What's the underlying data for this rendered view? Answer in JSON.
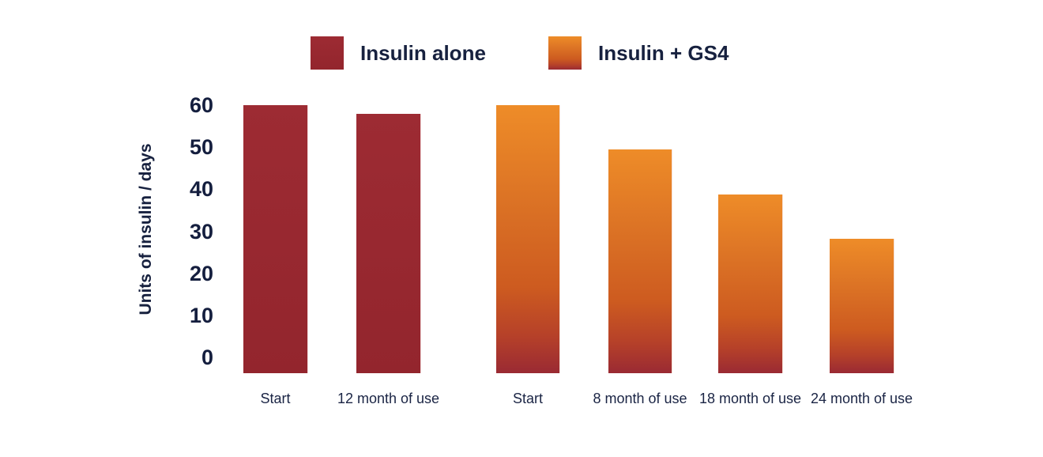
{
  "legend": {
    "items": [
      {
        "label": "Insulin alone",
        "swatch_color": "#97282f"
      },
      {
        "label": "Insulin + GS4",
        "swatch_gradient": [
          "#ee8c28",
          "#cd5b20",
          "#9a2a33"
        ]
      }
    ]
  },
  "colors": {
    "insulin_alone_bar": "#97282f",
    "gs4_gradient_top": "#ee8c28",
    "gs4_gradient_mid": "#cd5b20",
    "gs4_gradient_bottom": "#9a2a33",
    "text_navy": "#17213f",
    "background": "#ffffff"
  },
  "chart_data": {
    "type": "bar",
    "title": "",
    "ylabel": "Units of insulin / days",
    "xlabel": "",
    "ylim": [
      0,
      60
    ],
    "yticks": [
      0,
      10,
      20,
      30,
      40,
      50,
      60
    ],
    "grid": false,
    "legend_position": "top",
    "series": [
      {
        "name": "Insulin alone",
        "categories": [
          "Start",
          "12 month of use"
        ],
        "values": [
          60,
          58
        ]
      },
      {
        "name": "Insulin + GS4",
        "categories": [
          "Start",
          "8 month of use",
          "18 month of use",
          "24 month of use"
        ],
        "values": [
          60,
          50,
          40,
          30
        ]
      }
    ]
  }
}
